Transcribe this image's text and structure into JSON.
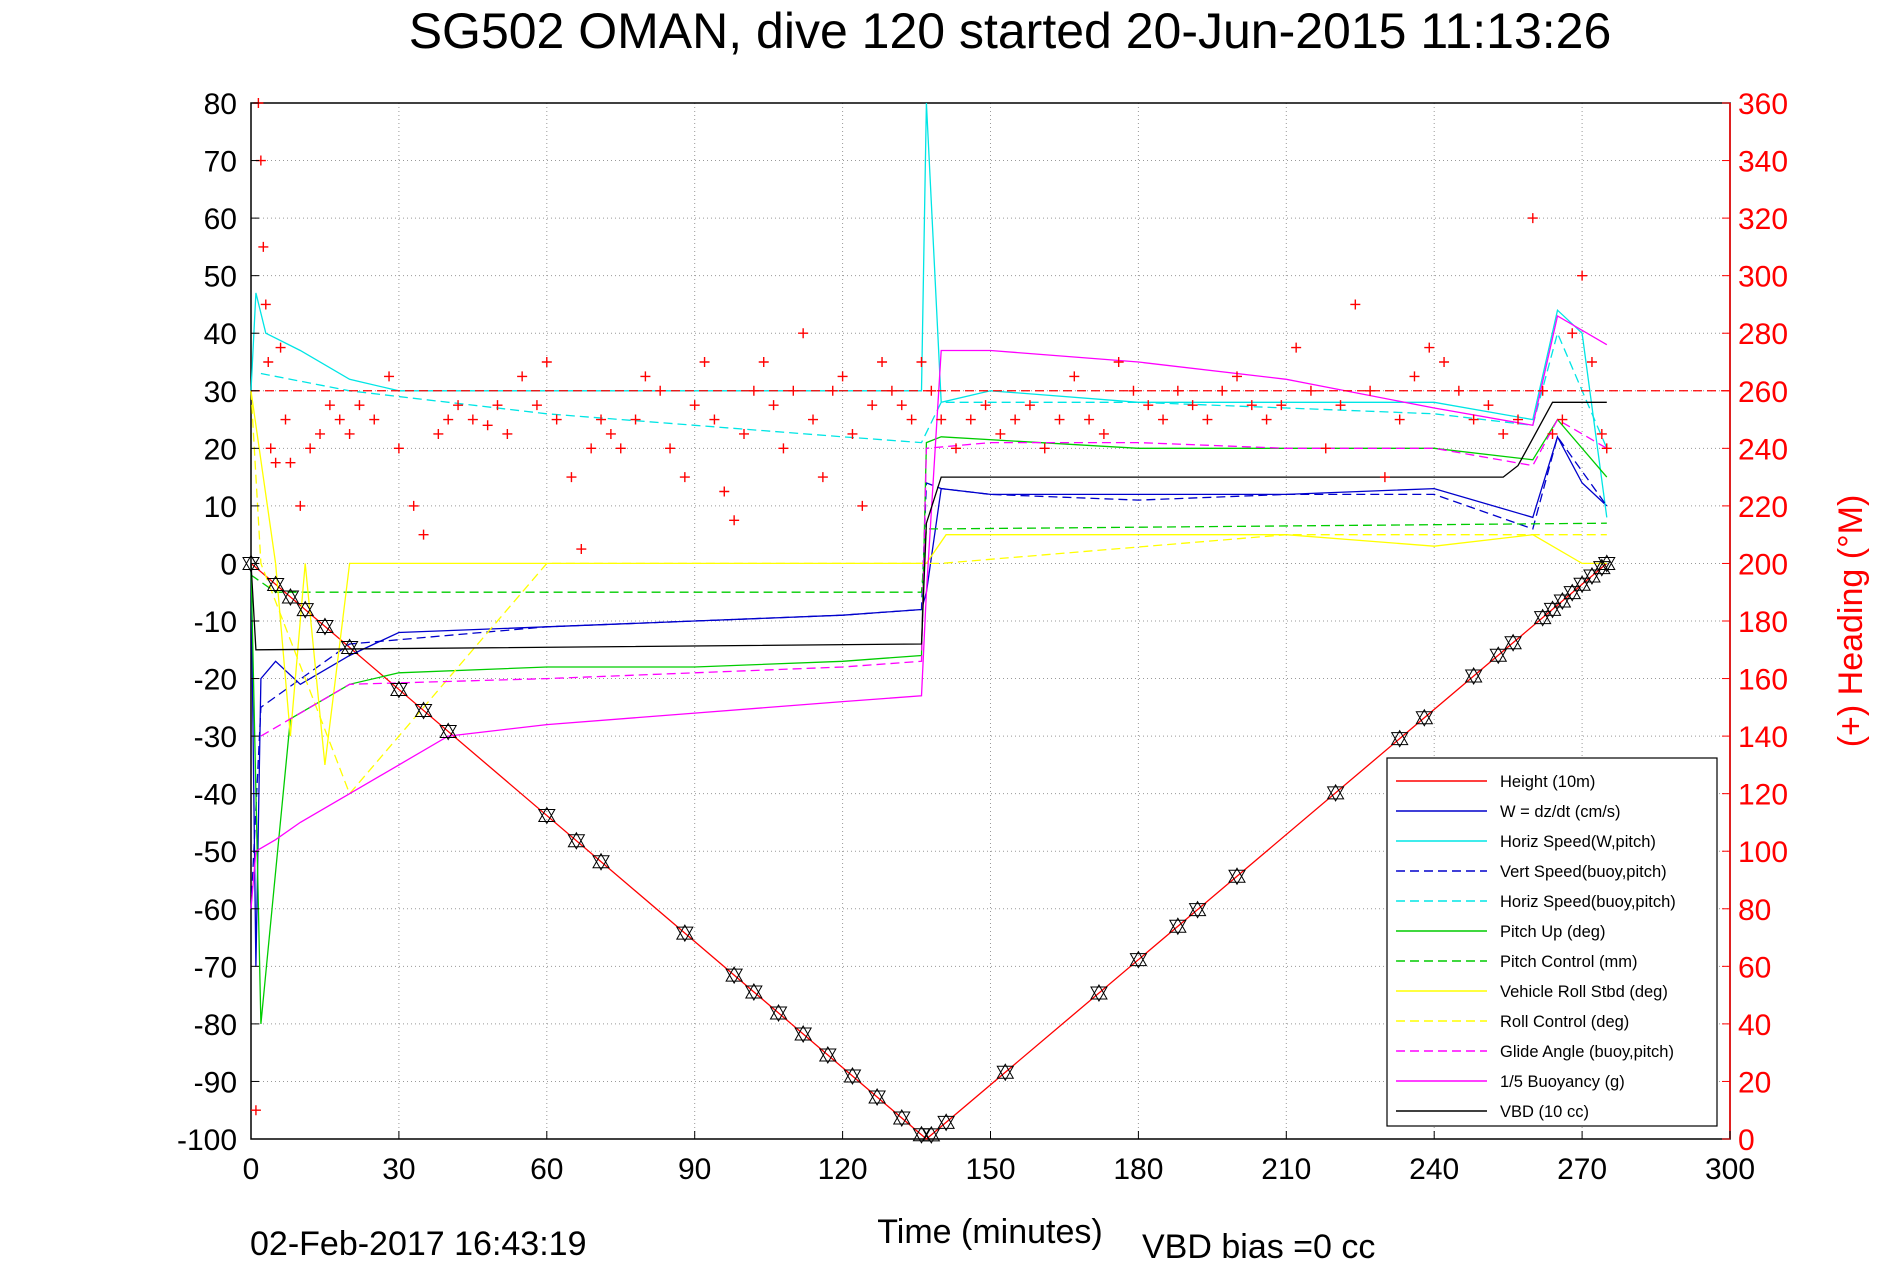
{
  "chart_data": {
    "type": "line",
    "title": "SG502 OMAN, dive 120 started 20-Jun-2015 11:13:26",
    "xlabel": "Time (minutes)",
    "ylabel_right": "(+) Heading (°M)",
    "xlim": [
      0,
      300
    ],
    "ylim": [
      -100,
      80
    ],
    "ylim_right": [
      0,
      360
    ],
    "xticks": [
      "0",
      "30",
      "60",
      "90",
      "120",
      "150",
      "180",
      "210",
      "240",
      "270",
      "300"
    ],
    "yticks": [
      "80",
      "70",
      "60",
      "50",
      "40",
      "30",
      "20",
      "10",
      "0",
      "-10",
      "-20",
      "-30",
      "-40",
      "-50",
      "-60",
      "-70",
      "-80",
      "-90",
      "-100"
    ],
    "yticks_right": [
      "360",
      "340",
      "320",
      "300",
      "280",
      "260",
      "240",
      "220",
      "200",
      "180",
      "160",
      "140",
      "120",
      "100",
      "80",
      "60",
      "40",
      "20",
      "0"
    ],
    "grid": true,
    "legend_position": "bottom-right",
    "footer_date": "02-Feb-2017 16:43:19",
    "footer_bias": "VBD bias =0 cc",
    "series": [
      {
        "name": "Height (10m)",
        "color": "#ff0000",
        "dash": "solid",
        "x": [
          0,
          137,
          275
        ],
        "y": [
          0,
          -100,
          0
        ]
      },
      {
        "name": "W = dz/dt (cm/s)",
        "color": "#0000cc",
        "dash": "solid",
        "x": [
          0,
          1,
          2,
          5,
          10,
          20,
          30,
          60,
          90,
          120,
          136,
          137,
          140,
          150,
          180,
          210,
          240,
          260,
          265,
          270,
          275
        ],
        "y": [
          0,
          -70,
          -20,
          -17,
          -21,
          -16,
          -12,
          -11,
          -10,
          -9,
          -8,
          -5,
          13,
          12,
          12,
          12,
          13,
          8,
          22,
          14,
          10
        ]
      },
      {
        "name": "Horiz Speed(W,pitch)",
        "color": "#00e5e5",
        "dash": "solid",
        "x": [
          0,
          1,
          3,
          10,
          20,
          30,
          60,
          90,
          120,
          136,
          137,
          140,
          150,
          180,
          210,
          240,
          260,
          265,
          270,
          275
        ],
        "y": [
          30,
          47,
          40,
          37,
          32,
          30,
          30,
          30,
          30,
          30,
          80,
          28,
          30,
          28,
          28,
          28,
          25,
          44,
          40,
          8
        ]
      },
      {
        "name": "Vert Speed(buoy,pitch)",
        "color": "#0000cc",
        "dash": "dashed",
        "x": [
          0,
          2,
          20,
          60,
          90,
          120,
          136,
          137,
          140,
          150,
          180,
          210,
          240,
          260,
          265,
          275
        ],
        "y": [
          -60,
          -25,
          -14,
          -11,
          -10,
          -9,
          -8,
          14,
          13,
          12,
          11,
          12,
          12,
          6,
          22,
          10
        ]
      },
      {
        "name": "Horiz Speed(buoy,pitch)",
        "color": "#00e5e5",
        "dash": "dashed",
        "x": [
          2,
          20,
          60,
          90,
          120,
          136,
          140,
          180,
          210,
          240,
          260,
          265,
          275
        ],
        "y": [
          33,
          30,
          26,
          24,
          22,
          21,
          28,
          28,
          27,
          26,
          24,
          40,
          20
        ]
      },
      {
        "name": "Pitch Up (deg)",
        "color": "#00cc00",
        "dash": "solid",
        "x": [
          0,
          2,
          8,
          20,
          30,
          60,
          90,
          120,
          136,
          137,
          140,
          180,
          210,
          240,
          260,
          265,
          275
        ],
        "y": [
          0,
          -80,
          -27,
          -21,
          -19,
          -18,
          -18,
          -17,
          -16,
          21,
          22,
          20,
          20,
          20,
          18,
          25,
          15
        ]
      },
      {
        "name": "Pitch Control (mm)",
        "color": "#00cc00",
        "dash": "dashed",
        "x": [
          0,
          5,
          136,
          137,
          140,
          275
        ],
        "y": [
          -2,
          -5,
          -5,
          6,
          6,
          7
        ]
      },
      {
        "name": "Vehicle Roll Stbd (deg)",
        "color": "#ffff00",
        "dash": "solid",
        "x": [
          0,
          5,
          8,
          11,
          15,
          20,
          30,
          60,
          90,
          120,
          136,
          137,
          141,
          180,
          210,
          240,
          260,
          270,
          275
        ],
        "y": [
          30,
          0,
          -30,
          0,
          -35,
          0,
          0,
          0,
          0,
          0,
          0,
          0,
          5,
          5,
          5,
          3,
          5,
          0,
          0
        ]
      },
      {
        "name": "Roll Control (deg)",
        "color": "#ffff00",
        "dash": "dashed",
        "x": [
          0,
          2,
          20,
          60,
          136,
          137,
          140,
          210,
          240,
          275
        ],
        "y": [
          30,
          0,
          -40,
          0,
          0,
          0,
          0,
          5,
          5,
          5
        ]
      },
      {
        "name": "Glide Angle (buoy,pitch)",
        "color": "#ff00ff",
        "dash": "dashed",
        "x": [
          2,
          20,
          60,
          90,
          120,
          136,
          137,
          150,
          180,
          210,
          240,
          260,
          265,
          275
        ],
        "y": [
          -30,
          -21,
          -20,
          -19,
          -18,
          -17,
          20,
          21,
          21,
          20,
          20,
          17,
          25,
          20
        ]
      },
      {
        "name": "1/5 Buoyancy (g)",
        "color": "#ff00ff",
        "dash": "solid",
        "x": [
          0,
          1,
          5,
          10,
          20,
          30,
          40,
          60,
          90,
          120,
          136,
          137,
          140,
          150,
          180,
          210,
          240,
          260,
          265,
          275
        ],
        "y": [
          -60,
          -50,
          -48,
          -45,
          -40,
          -35,
          -30,
          -28,
          -26,
          -24,
          -23,
          -5,
          37,
          37,
          35,
          32,
          27,
          24,
          43,
          38
        ]
      },
      {
        "name": "VBD (10 cc)",
        "color": "#000000",
        "dash": "solid",
        "x": [
          0,
          1,
          136,
          137,
          140,
          150,
          210,
          254,
          257,
          264,
          275
        ],
        "y": [
          0,
          -15,
          -14,
          7,
          15,
          15,
          15,
          15,
          17,
          28,
          28
        ]
      }
    ],
    "heading": {
      "name": "(+) Heading (°M)",
      "color": "#ff0000",
      "marker": "+",
      "reference": 260,
      "x": [
        1,
        1.5,
        2,
        2.5,
        3,
        3.5,
        4,
        5,
        6,
        7,
        8,
        10,
        12,
        14,
        16,
        18,
        20,
        22,
        25,
        28,
        30,
        33,
        35,
        38,
        40,
        42,
        45,
        48,
        50,
        52,
        55,
        58,
        60,
        62,
        65,
        67,
        69,
        71,
        73,
        75,
        78,
        80,
        83,
        85,
        88,
        90,
        92,
        94,
        96,
        98,
        100,
        102,
        104,
        106,
        108,
        110,
        112,
        114,
        116,
        118,
        120,
        122,
        124,
        126,
        128,
        130,
        132,
        134,
        136,
        138,
        140,
        143,
        146,
        149,
        152,
        155,
        158,
        161,
        164,
        167,
        170,
        173,
        176,
        179,
        182,
        185,
        188,
        191,
        194,
        197,
        200,
        203,
        206,
        209,
        212,
        215,
        218,
        221,
        224,
        227,
        230,
        233,
        236,
        239,
        242,
        245,
        248,
        251,
        254,
        257,
        260,
        262,
        264,
        266,
        268,
        270,
        272,
        274,
        275
      ],
      "y": [
        10,
        360,
        340,
        310,
        290,
        270,
        240,
        235,
        275,
        250,
        235,
        220,
        240,
        245,
        255,
        250,
        245,
        255,
        250,
        265,
        240,
        220,
        210,
        245,
        250,
        255,
        250,
        248,
        255,
        245,
        265,
        255,
        270,
        250,
        230,
        205,
        240,
        250,
        245,
        240,
        250,
        265,
        260,
        240,
        230,
        255,
        270,
        250,
        225,
        215,
        245,
        260,
        270,
        255,
        240,
        260,
        280,
        250,
        230,
        260,
        265,
        245,
        220,
        255,
        270,
        260,
        255,
        250,
        270,
        260,
        250,
        240,
        250,
        255,
        245,
        250,
        255,
        240,
        250,
        265,
        250,
        245,
        270,
        260,
        255,
        250,
        260,
        255,
        250,
        260,
        265,
        255,
        250,
        255,
        275,
        260,
        240,
        255,
        290,
        260,
        230,
        250,
        265,
        275,
        270,
        260,
        250,
        255,
        245,
        250,
        320,
        260,
        245,
        250,
        280,
        300,
        270,
        245,
        240
      ]
    }
  }
}
